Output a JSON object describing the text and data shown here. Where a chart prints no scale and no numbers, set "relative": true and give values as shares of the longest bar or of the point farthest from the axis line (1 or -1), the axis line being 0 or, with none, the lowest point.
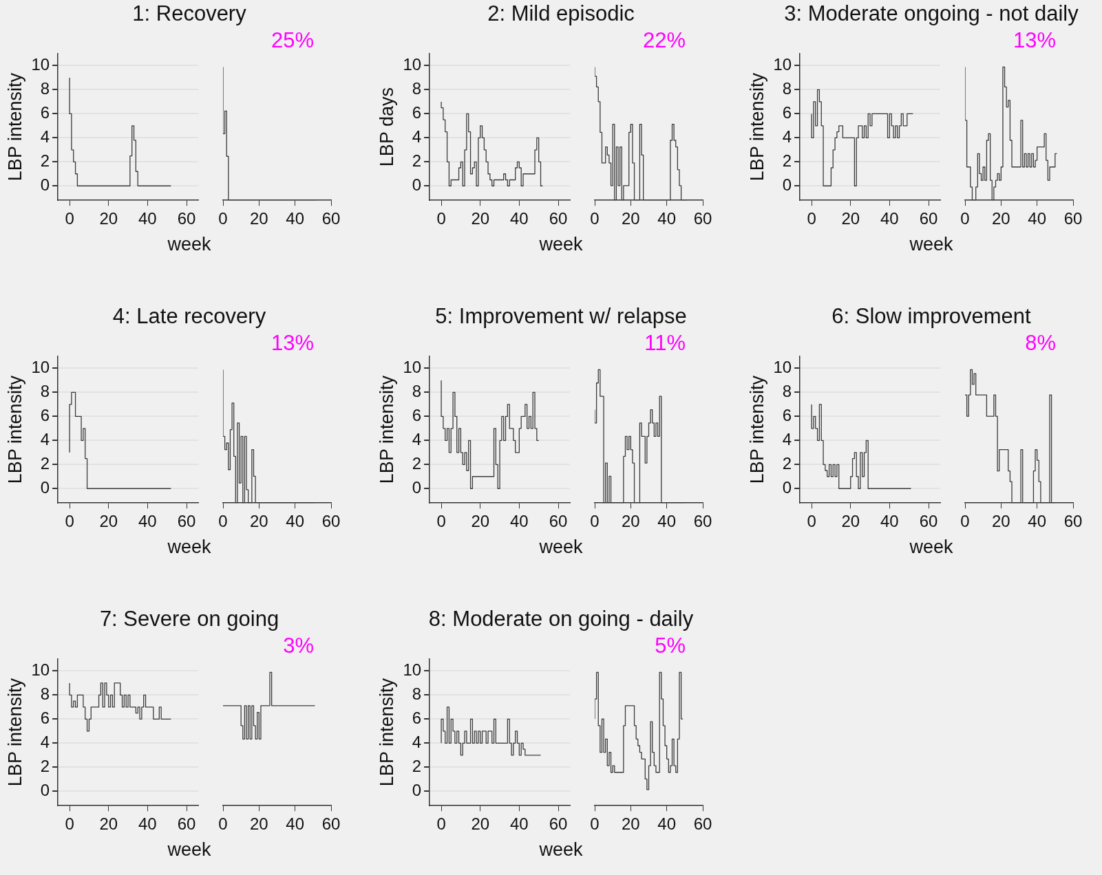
{
  "chart_data": [
    {
      "type": "step",
      "title": "1: Recovery",
      "ylabel": "LBP intensity",
      "xlabel": "week",
      "x": [
        0,
        1,
        2,
        3,
        4,
        5,
        31,
        32,
        33,
        34,
        35,
        52
      ],
      "values": [
        9,
        6,
        3,
        2,
        1,
        0,
        0,
        2.5,
        5,
        3.8,
        1.2,
        0
      ],
      "color": "#3a3a3a",
      "xlim": [
        -6,
        66
      ],
      "xticks": [
        0,
        20,
        40,
        60
      ],
      "ylim": [
        -1.2,
        11
      ],
      "yticks": [
        0,
        2,
        4,
        6,
        8,
        10
      ],
      "grid": "y"
    },
    {
      "type": "step",
      "annotations": [
        "25%"
      ],
      "relative": true,
      "x": [
        0,
        1,
        2,
        3,
        4,
        52
      ],
      "values": [
        1,
        0.5,
        0.67,
        0.33,
        0,
        0
      ],
      "color": "#3a3a3a",
      "xlim": [
        0,
        60
      ],
      "xticks": [
        0,
        20,
        40,
        60
      ],
      "tick_labels": "x"
    },
    {
      "type": "step",
      "title": "2: Mild episodic",
      "ylabel": "LBP days",
      "xlabel": "week",
      "x": [
        0,
        1,
        2,
        3,
        4,
        5,
        9,
        10,
        11,
        12,
        13,
        14,
        15,
        16,
        17,
        18,
        19,
        20,
        21,
        22,
        23,
        24,
        25,
        26,
        27,
        32,
        33,
        34,
        35,
        38,
        39,
        40,
        41,
        42,
        48,
        49,
        50,
        51,
        52
      ],
      "values": [
        7,
        6.5,
        5.5,
        4.5,
        2,
        0,
        0.5,
        1.5,
        2,
        0,
        3,
        6,
        4.5,
        1,
        1.5,
        2,
        0,
        4,
        5,
        4,
        3,
        2,
        1,
        0.5,
        0,
        0.5,
        1,
        0.5,
        0,
        0.5,
        1.5,
        2,
        1.5,
        0,
        1,
        3,
        4,
        2,
        0
      ],
      "color": "#3a3a3a",
      "xlim": [
        -6,
        66
      ],
      "xticks": [
        0,
        20,
        40,
        60
      ],
      "ylim": [
        -1.2,
        11
      ],
      "yticks": [
        0,
        2,
        4,
        6,
        8,
        10
      ],
      "grid": "y"
    },
    {
      "type": "step",
      "annotations": [
        "22%"
      ],
      "relative": true,
      "x": [
        0,
        1,
        2,
        3,
        4,
        5,
        6,
        7,
        8,
        9,
        10,
        11,
        12,
        13,
        14,
        15,
        16,
        19,
        20,
        21,
        22,
        23,
        25,
        26,
        27,
        28,
        42,
        43,
        44,
        45,
        46,
        47,
        48,
        49,
        51
      ],
      "values": [
        1,
        0.93,
        0.85,
        0.74,
        0.51,
        0.28,
        0.28,
        0.4,
        0.34,
        0.28,
        0.11,
        0.57,
        0,
        0.4,
        0.11,
        0.4,
        0,
        0.11,
        0.51,
        0.57,
        0.28,
        0,
        0,
        0.57,
        0.34,
        0,
        0,
        0.45,
        0.57,
        0.45,
        0.4,
        0.23,
        0.11,
        0,
        0
      ],
      "color": "#3a3a3a",
      "xlim": [
        0,
        60
      ],
      "xticks": [
        0,
        20,
        40,
        60
      ],
      "tick_labels": "x"
    },
    {
      "type": "step",
      "title": "3: Moderate ongoing - not daily",
      "ylabel": "LBP intensity",
      "xlabel": "week",
      "x": [
        0,
        1,
        2,
        3,
        4,
        5,
        6,
        7,
        10,
        11,
        12,
        13,
        14,
        15,
        16,
        17,
        22,
        23,
        24,
        25,
        26,
        27,
        28,
        29,
        30,
        31,
        32,
        33,
        39,
        40,
        41,
        42,
        43,
        44,
        45,
        46,
        47,
        48,
        49,
        50,
        52
      ],
      "values": [
        6,
        4,
        7,
        5,
        8,
        7,
        5,
        0,
        0,
        1.5,
        3,
        4,
        4.5,
        5,
        5,
        4,
        4,
        0,
        4,
        5,
        5,
        4,
        5,
        4,
        6,
        5,
        6,
        6,
        6,
        4,
        6,
        5,
        4,
        5,
        4,
        5,
        6,
        5,
        5,
        6,
        6
      ],
      "color": "#3a3a3a",
      "xlim": [
        -6,
        66
      ],
      "xticks": [
        0,
        20,
        40,
        60
      ],
      "ylim": [
        -1.2,
        11
      ],
      "yticks": [
        0,
        2,
        4,
        6,
        8,
        10
      ],
      "grid": "y"
    },
    {
      "type": "step",
      "annotations": [
        "13%"
      ],
      "relative": true,
      "x": [
        0,
        1,
        2,
        3,
        4,
        5,
        6,
        7,
        8,
        9,
        10,
        11,
        12,
        13,
        14,
        15,
        16,
        17,
        18,
        19,
        20,
        21,
        22,
        23,
        24,
        25,
        26,
        27,
        31,
        32,
        33,
        34,
        35,
        36,
        37,
        38,
        39,
        40,
        44,
        45,
        46,
        47,
        48,
        50,
        51
      ],
      "values": [
        1,
        0.6,
        0.25,
        0.25,
        0.1,
        0,
        0,
        0.1,
        0.35,
        0.2,
        0.15,
        0.25,
        0.15,
        0.45,
        0.5,
        0.15,
        0,
        0.1,
        0.15,
        0.2,
        0.15,
        0.25,
        1,
        0.85,
        0.7,
        0.75,
        0.45,
        0.25,
        0.25,
        0.6,
        0.25,
        0.35,
        0.25,
        0.35,
        0.25,
        0.35,
        0.25,
        0.3,
        0.4,
        0.5,
        0.3,
        0.15,
        0.25,
        0.25,
        0.35
      ],
      "color": "#3a3a3a",
      "xlim": [
        0,
        60
      ],
      "xticks": [
        0,
        20,
        40,
        60
      ],
      "tick_labels": "x"
    },
    {
      "type": "step",
      "title": "4: Late recovery",
      "ylabel": "LBP intensity",
      "xlabel": "week",
      "x": [
        0,
        1,
        2,
        3,
        6,
        7,
        8,
        9,
        10,
        52
      ],
      "values": [
        3,
        7,
        8,
        8,
        6,
        4,
        5,
        2.5,
        0,
        0
      ],
      "color": "#3a3a3a",
      "xlim": [
        -6,
        66
      ],
      "xticks": [
        0,
        20,
        40,
        60
      ],
      "ylim": [
        -1.2,
        11
      ],
      "yticks": [
        0,
        2,
        4,
        6,
        8,
        10
      ],
      "grid": "y"
    },
    {
      "type": "step",
      "annotations": [
        "13%"
      ],
      "relative": true,
      "x": [
        0,
        1,
        2,
        3,
        4,
        5,
        6,
        7,
        8,
        9,
        10,
        11,
        12,
        13,
        14,
        15,
        16,
        17,
        18,
        19,
        51
      ],
      "values": [
        1,
        0.5,
        0.4,
        0.45,
        0.25,
        0.55,
        0.75,
        0.35,
        0,
        0.6,
        0.15,
        0.5,
        0,
        0.5,
        0.1,
        0,
        0,
        0.4,
        0.2,
        0,
        0
      ],
      "color": "#3a3a3a",
      "xlim": [
        0,
        60
      ],
      "xticks": [
        0,
        20,
        40,
        60
      ],
      "tick_labels": "x"
    },
    {
      "type": "step",
      "title": "5: Improvement w/ relapse",
      "ylabel": "LBP intensity",
      "xlabel": "week",
      "x": [
        0,
        1,
        2,
        3,
        4,
        5,
        6,
        7,
        8,
        9,
        10,
        11,
        12,
        13,
        14,
        15,
        16,
        27,
        28,
        29,
        30,
        31,
        32,
        33,
        34,
        35,
        36,
        37,
        38,
        39,
        40,
        41,
        42,
        43,
        44,
        45,
        46,
        47,
        48,
        49,
        50
      ],
      "values": [
        9,
        6,
        5,
        4,
        5,
        3,
        5,
        8,
        6,
        3,
        5,
        3,
        2,
        3,
        1.5,
        4,
        0,
        1,
        5,
        2,
        0,
        4,
        6,
        4,
        6,
        7,
        5,
        5,
        4,
        3,
        3,
        5,
        6,
        6,
        7,
        5,
        6,
        5,
        8,
        5,
        4
      ],
      "color": "#3a3a3a",
      "xlim": [
        -6,
        66
      ],
      "xticks": [
        0,
        20,
        40,
        60
      ],
      "ylim": [
        -1.2,
        11
      ],
      "yticks": [
        0,
        2,
        4,
        6,
        8,
        10
      ],
      "grid": "y"
    },
    {
      "type": "step",
      "annotations": [
        "11%"
      ],
      "relative": true,
      "x": [
        0,
        1,
        2,
        3,
        4,
        5,
        6,
        7,
        8,
        9,
        10,
        16,
        17,
        18,
        19,
        20,
        21,
        22,
        23,
        25,
        26,
        27,
        28,
        29,
        30,
        31,
        32,
        33,
        34,
        35,
        36,
        37,
        38,
        50
      ],
      "values": [
        0.7,
        0.6,
        0.9,
        1,
        0.8,
        0.8,
        0,
        0.3,
        0,
        0.2,
        0,
        0,
        0.35,
        0.5,
        0.4,
        0.5,
        0.4,
        0.3,
        0,
        0,
        0.6,
        0.5,
        0.5,
        0.3,
        0.5,
        0.6,
        0.7,
        0.6,
        0.5,
        0.6,
        0.5,
        0.8,
        0,
        0
      ],
      "color": "#3a3a3a",
      "xlim": [
        0,
        60
      ],
      "xticks": [
        0,
        20,
        40,
        60
      ],
      "tick_labels": "x"
    },
    {
      "type": "step",
      "title": "6: Slow improvement",
      "ylabel": "LBP intensity",
      "xlabel": "week",
      "x": [
        0,
        1,
        2,
        3,
        4,
        5,
        6,
        7,
        8,
        9,
        10,
        11,
        12,
        13,
        14,
        15,
        20,
        21,
        22,
        23,
        24,
        25,
        26,
        27,
        28,
        29,
        30,
        51
      ],
      "values": [
        7,
        5,
        6,
        5,
        4,
        7,
        4,
        2,
        1.5,
        1,
        2,
        1,
        2,
        1,
        2,
        0,
        0,
        1,
        2.5,
        3,
        1,
        0,
        3,
        1,
        3,
        4,
        0,
        0
      ],
      "color": "#3a3a3a",
      "xlim": [
        -6,
        66
      ],
      "xticks": [
        0,
        20,
        40,
        60
      ],
      "ylim": [
        -1.2,
        11
      ],
      "yticks": [
        0,
        2,
        4,
        6,
        8,
        10
      ],
      "grid": "y"
    },
    {
      "type": "step",
      "annotations": [
        "8%"
      ],
      "relative": true,
      "x": [
        0,
        1,
        2,
        3,
        4,
        5,
        6,
        7,
        12,
        13,
        16,
        17,
        18,
        19,
        20,
        24,
        25,
        26,
        27,
        31,
        32,
        33,
        38,
        39,
        40,
        41,
        42,
        43,
        47,
        48,
        49,
        50
      ],
      "values": [
        0.81,
        0.81,
        0.65,
        0.81,
        1,
        0.89,
        0.97,
        0.81,
        0.81,
        0.65,
        0.65,
        0.81,
        0.65,
        0.24,
        0.4,
        0.4,
        0.24,
        0.16,
        0,
        0,
        0.4,
        0,
        0,
        0.24,
        0.4,
        0.32,
        0.16,
        0,
        0,
        0.81,
        0,
        0
      ],
      "color": "#3a3a3a",
      "xlim": [
        0,
        60
      ],
      "xticks": [
        0,
        20,
        40,
        60
      ],
      "tick_labels": "x"
    },
    {
      "type": "step",
      "title": "7: Severe on going",
      "ylabel": "LBP intensity",
      "xlabel": "week",
      "x": [
        0,
        1,
        2,
        3,
        4,
        5,
        7,
        8,
        9,
        10,
        11,
        12,
        15,
        16,
        17,
        18,
        19,
        20,
        21,
        22,
        23,
        24,
        26,
        27,
        28,
        29,
        30,
        31,
        32,
        34,
        35,
        36,
        37,
        38,
        39,
        40,
        43,
        44,
        46,
        47,
        48,
        52
      ],
      "values": [
        9,
        8,
        7,
        7.5,
        7,
        8,
        8,
        7,
        6,
        5,
        6,
        7,
        7,
        8,
        9,
        7,
        9,
        8,
        7,
        8,
        7,
        9,
        9,
        8,
        7,
        8,
        7,
        8,
        7,
        7,
        6.5,
        7,
        6,
        7,
        8,
        7,
        7,
        6,
        6,
        7,
        6,
        6
      ],
      "color": "#3a3a3a",
      "xlim": [
        -6,
        66
      ],
      "xticks": [
        0,
        20,
        40,
        60
      ],
      "ylim": [
        -1.2,
        11
      ],
      "yticks": [
        0,
        2,
        4,
        6,
        8,
        10
      ],
      "grid": "y"
    },
    {
      "type": "step",
      "annotations": [
        "3%"
      ],
      "relative": true,
      "x": [
        0,
        10,
        11,
        12,
        13,
        14,
        15,
        16,
        17,
        18,
        19,
        20,
        21,
        22,
        26,
        27,
        28,
        51
      ],
      "values": [
        0.75,
        0.75,
        0.6,
        0.5,
        0.75,
        0.5,
        0.75,
        0.5,
        0.75,
        0.6,
        0.5,
        0.7,
        0.5,
        0.75,
        0.75,
        1,
        0.75,
        0.75
      ],
      "color": "#3a3a3a",
      "xlim": [
        0,
        60
      ],
      "xticks": [
        0,
        20,
        40,
        60
      ],
      "tick_labels": "x"
    },
    {
      "type": "step",
      "title": "8: Moderate on going - daily",
      "ylabel": "LBP intensity",
      "xlabel": "week",
      "x": [
        0,
        1,
        2,
        3,
        4,
        5,
        6,
        7,
        8,
        9,
        10,
        11,
        12,
        13,
        14,
        15,
        16,
        17,
        18,
        19,
        20,
        21,
        22,
        23,
        24,
        25,
        26,
        27,
        28,
        29,
        30,
        34,
        35,
        36,
        37,
        38,
        39,
        40,
        41,
        42,
        43,
        44,
        51
      ],
      "values": [
        4,
        6,
        5,
        4,
        7,
        4,
        6,
        5,
        4,
        5,
        4,
        3,
        4,
        5,
        4,
        4,
        6,
        4,
        5,
        4,
        5,
        4,
        5,
        5,
        4,
        5,
        5,
        4,
        6,
        4,
        4,
        4,
        6,
        4,
        3,
        4,
        5,
        4,
        3,
        4,
        3.5,
        3,
        3
      ],
      "color": "#3a3a3a",
      "xlim": [
        -6,
        66
      ],
      "xticks": [
        0,
        20,
        40,
        60
      ],
      "ylim": [
        -1.2,
        11
      ],
      "yticks": [
        0,
        2,
        4,
        6,
        8,
        10
      ],
      "grid": "y"
    },
    {
      "type": "step",
      "annotations": [
        "5%"
      ],
      "relative": true,
      "x": [
        0,
        1,
        2,
        3,
        4,
        5,
        6,
        7,
        8,
        9,
        10,
        11,
        12,
        16,
        17,
        18,
        22,
        23,
        24,
        25,
        26,
        27,
        28,
        29,
        30,
        31,
        32,
        33,
        34,
        35,
        36,
        37,
        38,
        39,
        40,
        41,
        42,
        43,
        44,
        45,
        46,
        47,
        48,
        49
      ],
      "values": [
        0.65,
        0.8,
        1,
        0.6,
        0.4,
        0.65,
        0.4,
        0.5,
        0.3,
        0.4,
        0.25,
        0.3,
        0.25,
        0.25,
        0.6,
        0.75,
        0.75,
        0.6,
        0.5,
        0.45,
        0.4,
        0.35,
        0.35,
        0.2,
        0.12,
        0.3,
        0.63,
        0.4,
        0.3,
        0.25,
        0.25,
        1,
        0.8,
        0.6,
        0.45,
        0.35,
        0.25,
        0.3,
        0.5,
        0.3,
        0.25,
        0.5,
        1,
        0.65
      ],
      "color": "#3a3a3a",
      "xlim": [
        0,
        60
      ],
      "xticks": [
        0,
        20,
        40,
        60
      ],
      "tick_labels": "x"
    }
  ]
}
